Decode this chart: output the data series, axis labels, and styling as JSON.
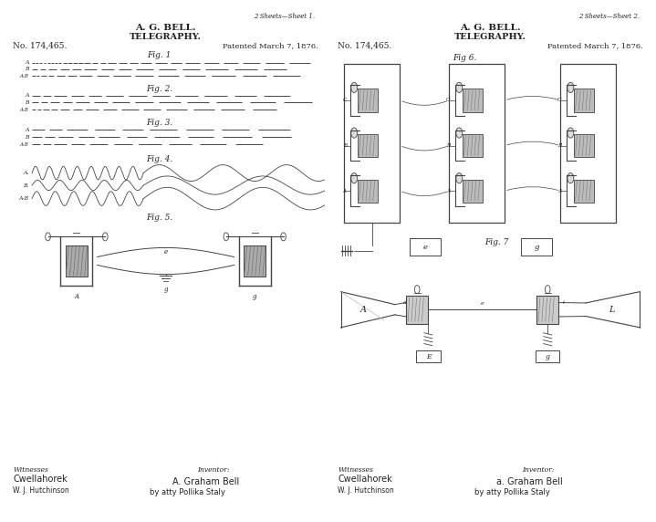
{
  "bg_color": "#ffffff",
  "line_color": "#444444",
  "text_color": "#222222",
  "sheet_left": "2 Sheets—Sheet 1.",
  "sheet_right": "2 Sheets—Sheet 2.",
  "patent_no": "No. 174,465.",
  "patent_date": "Patented March 7, 1876."
}
